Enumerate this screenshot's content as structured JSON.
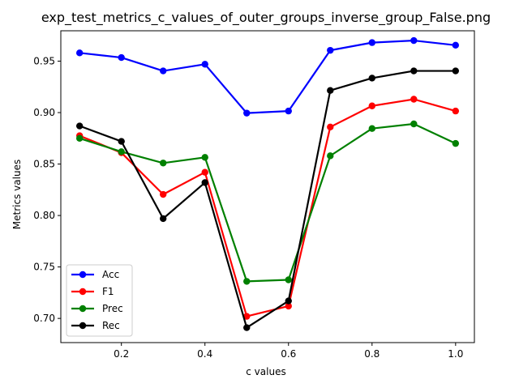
{
  "chart_data": {
    "type": "line",
    "title": "exp_test_metrics_c_values_of_outer_groups_inverse_group_False.png",
    "xlabel": "c values",
    "ylabel": "Metrics values",
    "xlim": [
      0.055,
      1.045
    ],
    "ylim": [
      0.6765,
      0.9795
    ],
    "x": [
      0.1,
      0.2,
      0.3,
      0.4,
      0.5,
      0.6,
      0.7,
      0.8,
      0.9,
      1.0
    ],
    "xticks": [
      0.2,
      0.4,
      0.6,
      0.8,
      1.0
    ],
    "xtick_labels": [
      "0.2",
      "0.4",
      "0.6",
      "0.8",
      "1.0"
    ],
    "yticks": [
      0.7,
      0.75,
      0.8,
      0.85,
      0.9,
      0.95
    ],
    "ytick_labels": [
      "0.70",
      "0.75",
      "0.80",
      "0.85",
      "0.90",
      "0.95"
    ],
    "grid": false,
    "legend_position": "lower-left",
    "series": [
      {
        "name": "Acc",
        "color": "#0000ff",
        "values": [
          0.958,
          0.9535,
          0.9405,
          0.947,
          0.8995,
          0.9015,
          0.9605,
          0.968,
          0.97,
          0.9655
        ]
      },
      {
        "name": "F1",
        "color": "#ff0000",
        "values": [
          0.8775,
          0.861,
          0.8205,
          0.842,
          0.702,
          0.712,
          0.886,
          0.9065,
          0.913,
          0.9015
        ]
      },
      {
        "name": "Prec",
        "color": "#008000",
        "values": [
          0.875,
          0.862,
          0.851,
          0.8565,
          0.736,
          0.7375,
          0.858,
          0.8845,
          0.889,
          0.87
        ]
      },
      {
        "name": "Rec",
        "color": "#000000",
        "values": [
          0.887,
          0.872,
          0.797,
          0.832,
          0.691,
          0.717,
          0.9215,
          0.9335,
          0.9405,
          0.9405
        ]
      }
    ]
  }
}
